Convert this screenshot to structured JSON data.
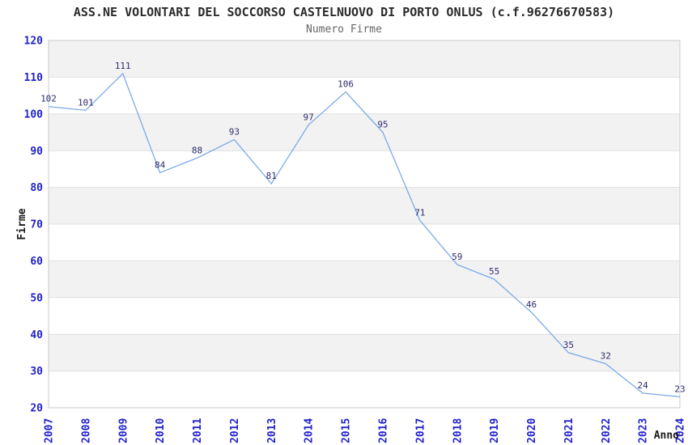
{
  "header": {
    "title": "ASS.NE VOLONTARI DEL SOCCORSO CASTELNUOVO DI PORTO ONLUS (c.f.96276670583)",
    "subtitle": "Numero Firme"
  },
  "chart_data": {
    "type": "line",
    "title": "ASS.NE VOLONTARI DEL SOCCORSO CASTELNUOVO DI PORTO ONLUS (c.f.96276670583)",
    "subtitle": "Numero Firme",
    "xlabel": "Anno",
    "ylabel": "Firme",
    "categories": [
      "2007",
      "2008",
      "2009",
      "2010",
      "2011",
      "2012",
      "2013",
      "2014",
      "2015",
      "2016",
      "2017",
      "2018",
      "2019",
      "2020",
      "2021",
      "2022",
      "2023",
      "2024"
    ],
    "series": [
      {
        "name": "Numero Firme",
        "values": [
          102,
          101,
          111,
          84,
          88,
          93,
          81,
          97,
          106,
          95,
          71,
          59,
          55,
          46,
          35,
          32,
          24,
          23
        ]
      }
    ],
    "ylim": [
      20,
      120
    ],
    "ytick_step": 10,
    "grid": "horizontal-alternating-bands",
    "legend_position": "none",
    "data_labels_visible": true,
    "x_tick_rotation_deg": -90,
    "colors": {
      "line": "#7aaae8",
      "tick_label": "#2222cc",
      "data_label": "#2d2d6e",
      "band_gray": "#f2f2f2",
      "band_white": "#ffffff",
      "gridline": "#e0e0e0",
      "plot_border": "#c9c9c9",
      "title": "#2b2b2b",
      "subtitle": "#666666",
      "axis_title": "#1a1a1a",
      "background": "#ffffff"
    }
  }
}
